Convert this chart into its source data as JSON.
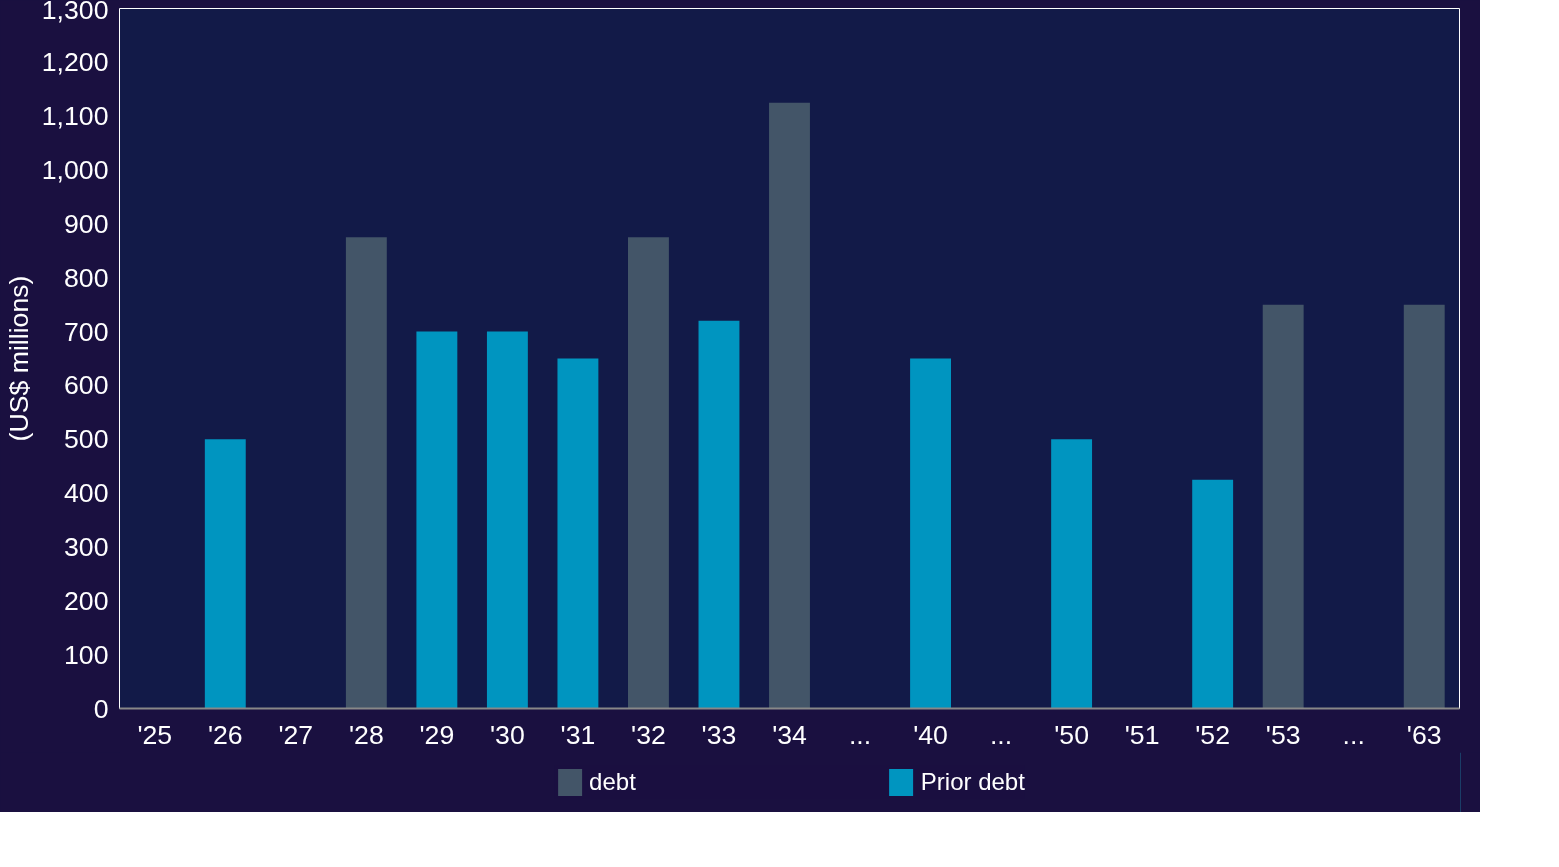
{
  "chart_data": {
    "type": "bar",
    "ylabel": "(US$ millions)",
    "categories": [
      "'25",
      "'26",
      "'27",
      "'28",
      "'29",
      "'30",
      "'31",
      "'32",
      "'33",
      "'34",
      "...",
      "'40",
      "...",
      "'50",
      "'51",
      "'52",
      "'53",
      "...",
      "'63"
    ],
    "series": [
      {
        "name": "debt",
        "color": "#435568",
        "values": [
          null,
          null,
          null,
          875,
          null,
          null,
          null,
          875,
          null,
          1125,
          null,
          null,
          null,
          null,
          null,
          null,
          750,
          null,
          750
        ]
      },
      {
        "name": "Prior debt",
        "color": "#0095c0",
        "values": [
          null,
          500,
          null,
          null,
          700,
          700,
          650,
          null,
          720,
          null,
          null,
          650,
          null,
          500,
          null,
          425,
          null,
          null,
          null
        ]
      }
    ],
    "ylim": [
      0,
      1300
    ],
    "yticks": [
      0,
      100,
      200,
      300,
      400,
      500,
      600,
      700,
      800,
      900,
      {
        "value": 1000,
        "label": "1,000"
      },
      {
        "value": 1100,
        "label": "1,100"
      },
      {
        "value": 1200,
        "label": "1,200"
      },
      {
        "value": 1300,
        "label": "1,300"
      }
    ],
    "grid": false,
    "legend": "bottom"
  }
}
